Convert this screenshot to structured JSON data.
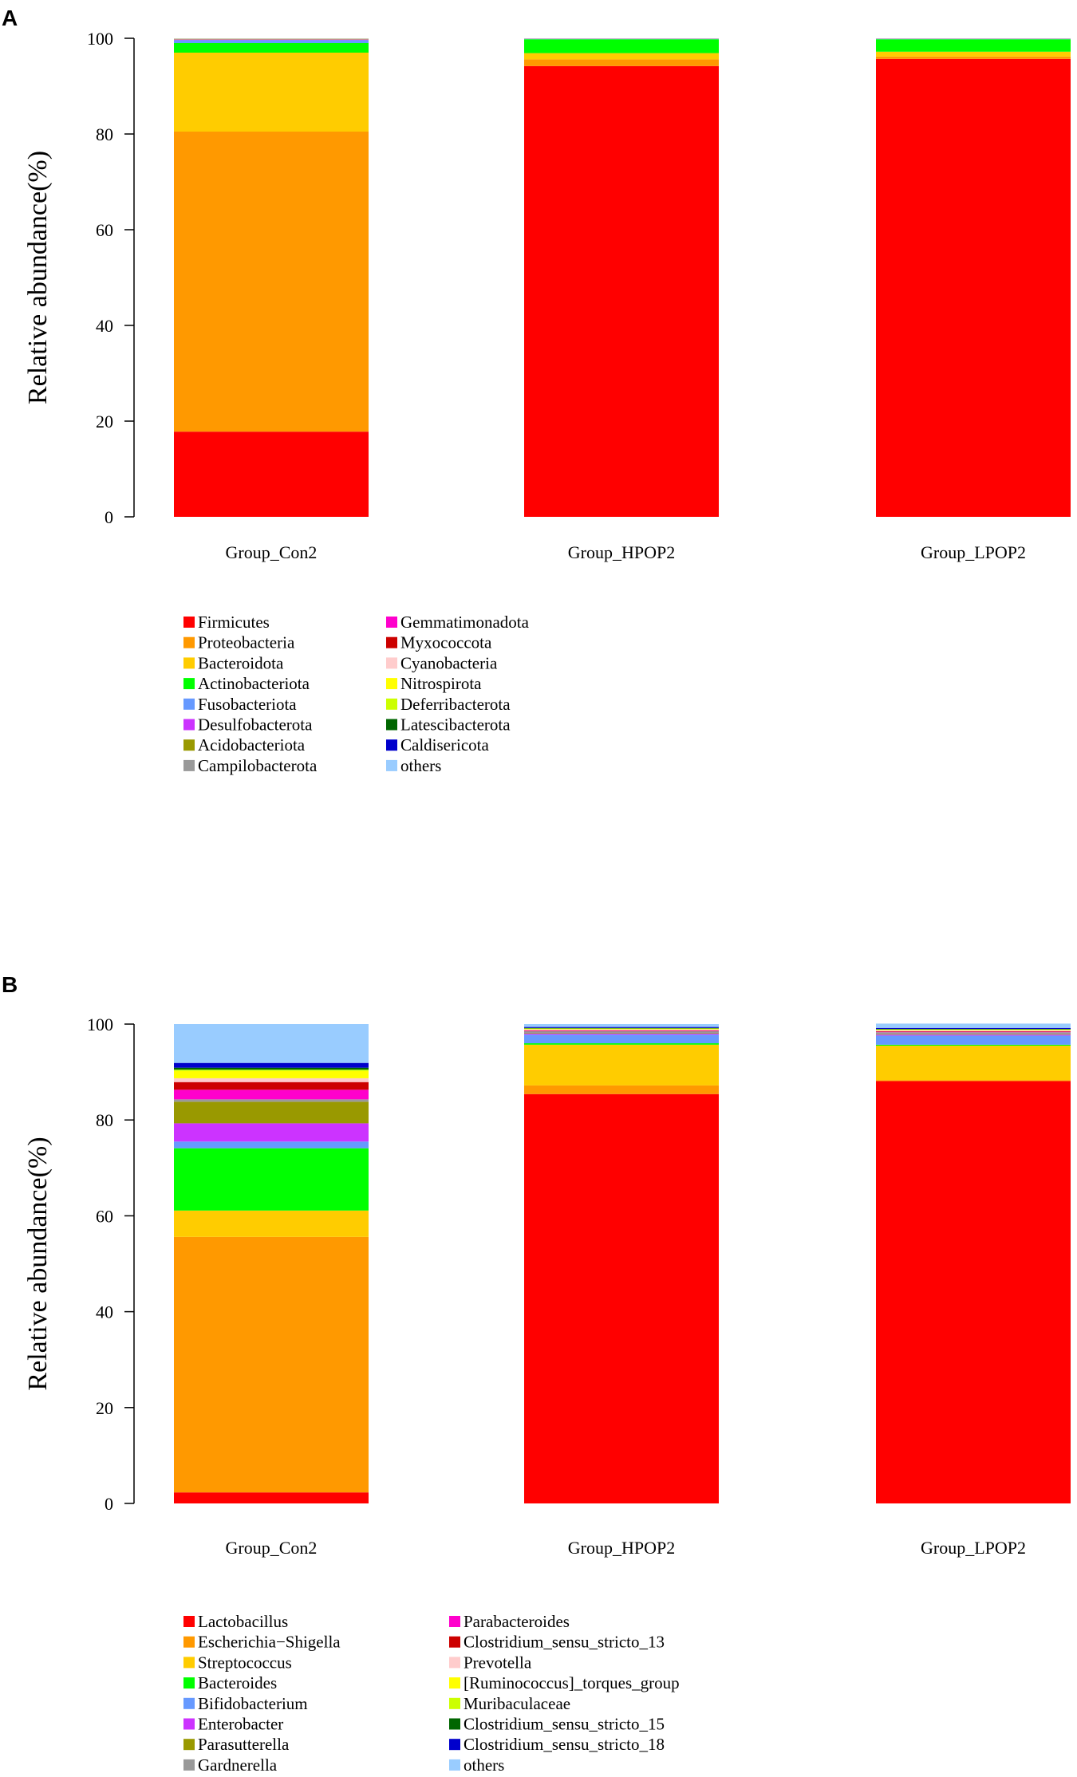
{
  "chart_data": [
    {
      "type": "bar",
      "stacked": true,
      "panel": "A",
      "title": "",
      "xlabel": "",
      "ylabel": "Relative abundance(%)",
      "ylim": [
        0,
        100
      ],
      "yticks": [
        "0",
        "20",
        "40",
        "60",
        "80",
        "100"
      ],
      "categories": [
        "Group_Con2",
        "Group_HPOP2",
        "Group_LPOP2"
      ],
      "series": [
        {
          "name": "Firmicutes",
          "color": "#ff0000",
          "values": [
            17.8,
            94.2,
            95.7
          ]
        },
        {
          "name": "Proteobacteria",
          "color": "#ff9900",
          "values": [
            62.7,
            1.4,
            0.5
          ]
        },
        {
          "name": "Bacteroidota",
          "color": "#ffcc00",
          "values": [
            16.5,
            1.3,
            1.0
          ]
        },
        {
          "name": "Actinobacteriota",
          "color": "#00ff00",
          "values": [
            2.0,
            2.9,
            2.6
          ]
        },
        {
          "name": "Fusobacteriota",
          "color": "#6699ff",
          "values": [
            0.6,
            0.05,
            0.05
          ]
        },
        {
          "name": "Desulfobacterota",
          "color": "#cc33ff",
          "values": [
            0.1,
            0.02,
            0.02
          ]
        },
        {
          "name": "Acidobacteriota",
          "color": "#999900",
          "values": [
            0.05,
            0.01,
            0.01
          ]
        },
        {
          "name": "Campilobacterota",
          "color": "#999999",
          "values": [
            0.05,
            0.01,
            0.01
          ]
        },
        {
          "name": "Gemmatimonadota",
          "color": "#ff00cc",
          "values": [
            0.03,
            0.01,
            0.01
          ]
        },
        {
          "name": "Myxococcota",
          "color": "#cc0000",
          "values": [
            0.03,
            0.01,
            0.01
          ]
        },
        {
          "name": "Cyanobacteria",
          "color": "#ffcccc",
          "values": [
            0.03,
            0.01,
            0.01
          ]
        },
        {
          "name": "Nitrospirota",
          "color": "#ffff00",
          "values": [
            0.02,
            0.01,
            0.01
          ]
        },
        {
          "name": "Deferribacterota",
          "color": "#ccff00",
          "values": [
            0.02,
            0.01,
            0.01
          ]
        },
        {
          "name": "Latescibacterota",
          "color": "#006600",
          "values": [
            0.01,
            0.01,
            0.01
          ]
        },
        {
          "name": "Caldisericota",
          "color": "#0000cc",
          "values": [
            0.01,
            0.01,
            0.01
          ]
        },
        {
          "name": "others",
          "color": "#99ccff",
          "values": [
            0.05,
            0.04,
            0.04
          ]
        }
      ]
    },
    {
      "type": "bar",
      "stacked": true,
      "panel": "B",
      "title": "",
      "xlabel": "",
      "ylabel": "Relative abundance(%)",
      "ylim": [
        0,
        100
      ],
      "yticks": [
        "0",
        "20",
        "40",
        "60",
        "80",
        "100"
      ],
      "categories": [
        "Group_Con2",
        "Group_HPOP2",
        "Group_LPOP2"
      ],
      "series": [
        {
          "name": "Lactobacillus",
          "color": "#ff0000",
          "values": [
            2.3,
            85.4,
            88.1
          ]
        },
        {
          "name": "Escherichia−Shigella",
          "color": "#ff9900",
          "values": [
            53.3,
            1.8,
            0.2
          ]
        },
        {
          "name": "Streptococcus",
          "color": "#ffcc00",
          "values": [
            5.5,
            8.5,
            7.2
          ]
        },
        {
          "name": "Bacteroides",
          "color": "#00ff00",
          "values": [
            13.0,
            0.3,
            0.2
          ]
        },
        {
          "name": "Bifidobacterium",
          "color": "#6699ff",
          "values": [
            1.4,
            1.8,
            1.9
          ]
        },
        {
          "name": "Enterobacter",
          "color": "#cc33ff",
          "values": [
            3.8,
            0.2,
            0.2
          ]
        },
        {
          "name": "Parasutterella",
          "color": "#999900",
          "values": [
            4.5,
            0.1,
            0.1
          ]
        },
        {
          "name": "Gardnerella",
          "color": "#999999",
          "values": [
            0.5,
            0.4,
            0.4
          ]
        },
        {
          "name": "Parabacteroides",
          "color": "#ff00cc",
          "values": [
            2.0,
            0.1,
            0.1
          ]
        },
        {
          "name": "Clostridium_sensu_stricto_13",
          "color": "#cc0000",
          "values": [
            1.6,
            0.1,
            0.1
          ]
        },
        {
          "name": "Prevotella",
          "color": "#ffcccc",
          "values": [
            0.8,
            0.2,
            0.2
          ]
        },
        {
          "name": "[Ruminococcus]_torques_group",
          "color": "#ffff00",
          "values": [
            1.5,
            0.1,
            0.1
          ]
        },
        {
          "name": "Muribaculaceae",
          "color": "#ccff00",
          "values": [
            0.3,
            0.1,
            0.1
          ]
        },
        {
          "name": "Clostridium_sensu_stricto_15",
          "color": "#006600",
          "values": [
            0.4,
            0.1,
            0.1
          ]
        },
        {
          "name": "Clostridium_sensu_stricto_18",
          "color": "#0000cc",
          "values": [
            1.0,
            0.2,
            0.2
          ]
        },
        {
          "name": "others",
          "color": "#99ccff",
          "values": [
            8.1,
            0.6,
            0.9
          ]
        }
      ]
    }
  ]
}
